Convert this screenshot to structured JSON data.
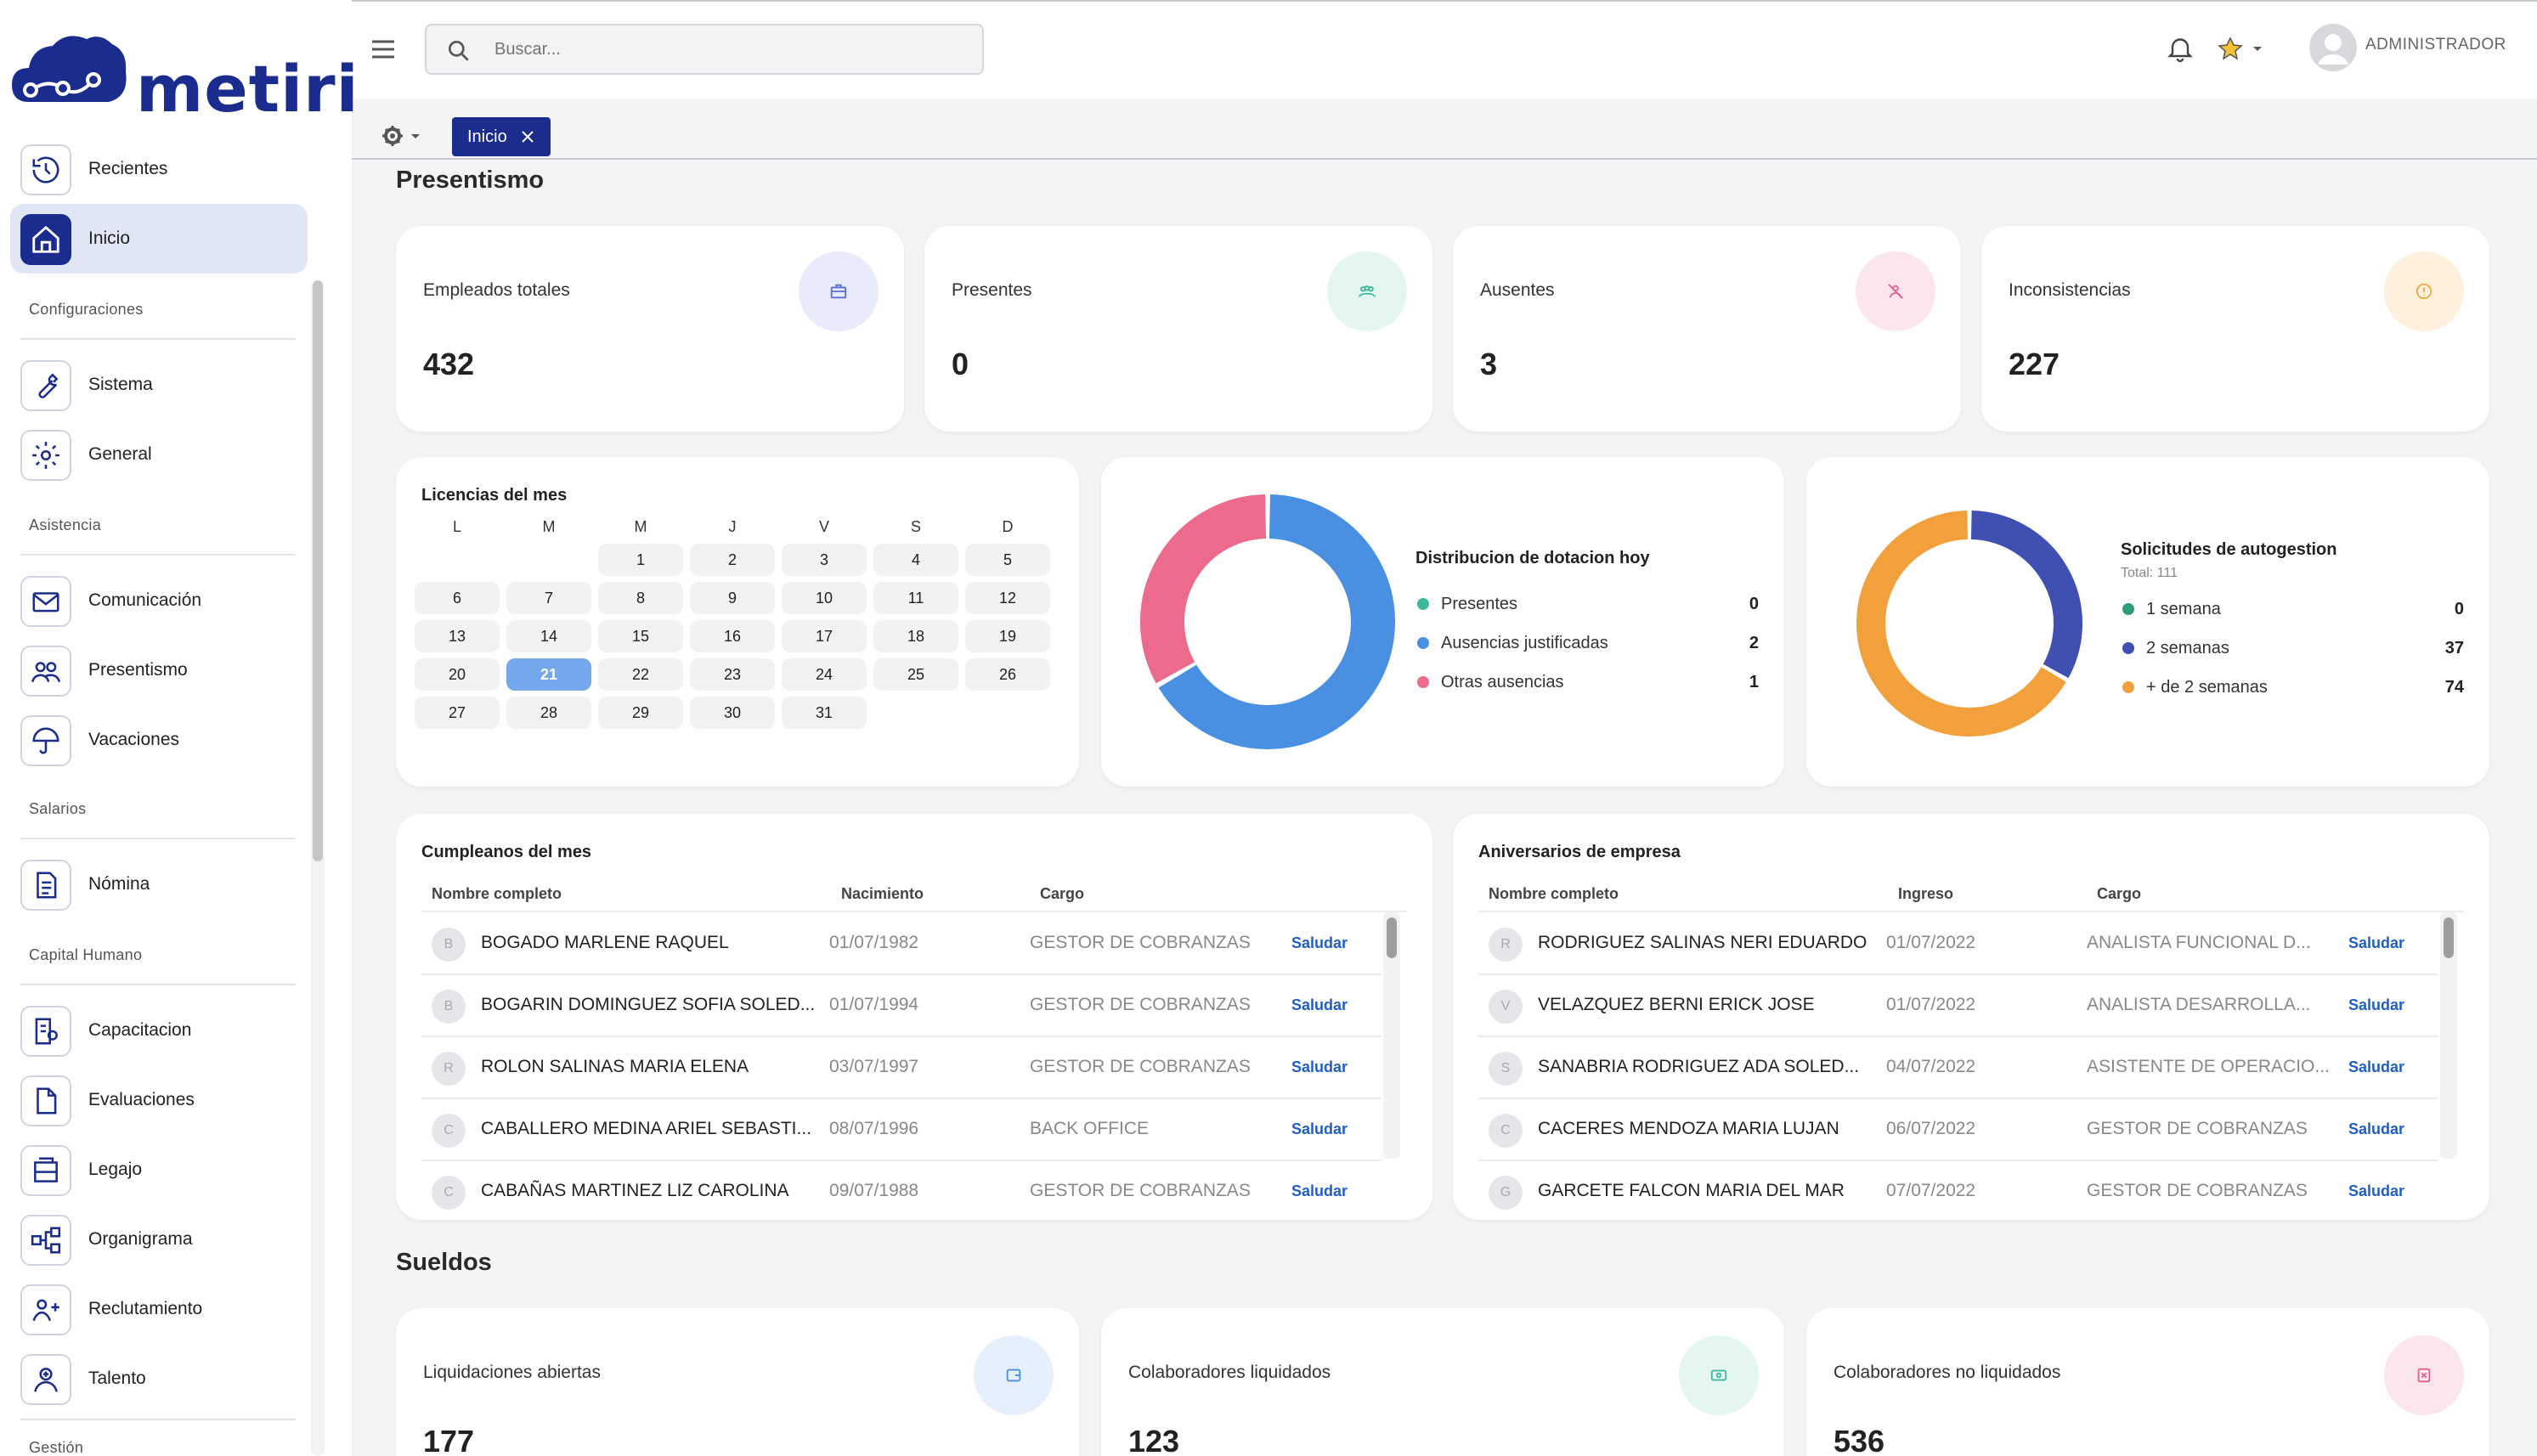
{
  "brand": {
    "name": "metiri"
  },
  "search": {
    "placeholder": "Buscar..."
  },
  "user": {
    "name": "ADMINISTRADOR"
  },
  "tabs": [
    {
      "label": "Inicio"
    }
  ],
  "sidebar": {
    "items": [
      {
        "label": "Recientes",
        "icon": "history-icon"
      },
      {
        "label": "Inicio",
        "icon": "home-icon",
        "active": true
      },
      {
        "label": "Sistema",
        "icon": "wrench-icon"
      },
      {
        "label": "General",
        "icon": "gear-icon"
      },
      {
        "label": "Comunicación",
        "icon": "mail-icon"
      },
      {
        "label": "Presentismo",
        "icon": "people-icon"
      },
      {
        "label": "Vacaciones",
        "icon": "umbrella-icon"
      },
      {
        "label": "Nómina",
        "icon": "document-icon"
      },
      {
        "label": "Capacitacion",
        "icon": "training-icon"
      },
      {
        "label": "Evaluaciones",
        "icon": "file-icon"
      },
      {
        "label": "Legajo",
        "icon": "folder-icon"
      },
      {
        "label": "Organigrama",
        "icon": "org-chart-icon"
      },
      {
        "label": "Reclutamiento",
        "icon": "recruit-icon"
      },
      {
        "label": "Talento",
        "icon": "talent-icon"
      }
    ],
    "sections": [
      "Configuraciones",
      "Asistencia",
      "Salarios",
      "Capital Humano",
      "Gestión"
    ]
  },
  "presentismo": {
    "title": "Presentismo",
    "stats": [
      {
        "label": "Empleados totales",
        "value": "432",
        "color": "#5a6fd6"
      },
      {
        "label": "Presentes",
        "value": "0",
        "color": "#3cb89a"
      },
      {
        "label": "Ausentes",
        "value": "3",
        "color": "#e0608a"
      },
      {
        "label": "Inconsistencias",
        "value": "227",
        "color": "#f0a840"
      }
    ]
  },
  "calendar": {
    "title": "Licencias del mes",
    "weekdays": [
      "L",
      "M",
      "M",
      "J",
      "V",
      "S",
      "D"
    ],
    "days": [
      "1",
      "2",
      "3",
      "4",
      "5",
      "6",
      "7",
      "8",
      "9",
      "10",
      "11",
      "12",
      "13",
      "14",
      "15",
      "16",
      "17",
      "18",
      "19",
      "20",
      "21",
      "22",
      "23",
      "24",
      "25",
      "26",
      "27",
      "28",
      "29",
      "30",
      "31"
    ],
    "today": "21"
  },
  "dotacion": {
    "title": "Distribucion de dotacion hoy",
    "legend": [
      {
        "label": "Presentes",
        "value": "0",
        "color": "#3cb89a"
      },
      {
        "label": "Ausencias justificadas",
        "value": "2",
        "color": "#4a90e2"
      },
      {
        "label": "Otras ausencias",
        "value": "1",
        "color": "#ec6a8c"
      }
    ]
  },
  "autogestion": {
    "title": "Solicitudes de autogestion",
    "subtitle": "Total: 111",
    "legend": [
      {
        "label": "1 semana",
        "value": "0",
        "color": "#2e9c7c"
      },
      {
        "label": "2 semanas",
        "value": "37",
        "color": "#3f4fb2"
      },
      {
        "label": "+ de 2 semanas",
        "value": "74",
        "color": "#f2a03c"
      }
    ]
  },
  "cumpleanos": {
    "title": "Cumpleanos del mes",
    "headers": [
      "Nombre completo",
      "Nacimiento",
      "Cargo"
    ],
    "action": "Saludar",
    "rows": [
      {
        "initial": "B",
        "name": "BOGADO MARLENE RAQUEL",
        "date": "01/07/1982",
        "role": "GESTOR DE COBRANZAS"
      },
      {
        "initial": "B",
        "name": "BOGARIN DOMINGUEZ SOFIA SOLED...",
        "date": "01/07/1994",
        "role": "GESTOR DE COBRANZAS"
      },
      {
        "initial": "R",
        "name": "ROLON SALINAS MARIA ELENA",
        "date": "03/07/1997",
        "role": "GESTOR DE COBRANZAS"
      },
      {
        "initial": "C",
        "name": "CABALLERO MEDINA ARIEL SEBASTI...",
        "date": "08/07/1996",
        "role": "BACK OFFICE"
      },
      {
        "initial": "C",
        "name": "CABAÑAS MARTINEZ LIZ CAROLINA",
        "date": "09/07/1988",
        "role": "GESTOR DE COBRANZAS"
      }
    ]
  },
  "aniversarios": {
    "title": "Aniversarios de empresa",
    "headers": [
      "Nombre completo",
      "Ingreso",
      "Cargo"
    ],
    "action": "Saludar",
    "rows": [
      {
        "initial": "R",
        "name": "RODRIGUEZ SALINAS NERI EDUARDO",
        "date": "01/07/2022",
        "role": "ANALISTA FUNCIONAL D..."
      },
      {
        "initial": "V",
        "name": "VELAZQUEZ BERNI ERICK JOSE",
        "date": "01/07/2022",
        "role": "ANALISTA DESARROLLA..."
      },
      {
        "initial": "S",
        "name": "SANABRIA RODRIGUEZ ADA SOLED...",
        "date": "04/07/2022",
        "role": "ASISTENTE DE OPERACIO..."
      },
      {
        "initial": "C",
        "name": "CACERES MENDOZA MARIA LUJAN",
        "date": "06/07/2022",
        "role": "GESTOR DE COBRANZAS"
      },
      {
        "initial": "G",
        "name": "GARCETE FALCON MARIA DEL MAR",
        "date": "07/07/2022",
        "role": "GESTOR DE COBRANZAS"
      }
    ]
  },
  "sueldos": {
    "title": "Sueldos",
    "stats": [
      {
        "label": "Liquidaciones abiertas",
        "value": "177",
        "color": "#4a90e2"
      },
      {
        "label": "Colaboradores liquidados",
        "value": "123",
        "color": "#3cb89a"
      },
      {
        "label": "Colaboradores no liquidados",
        "value": "536",
        "color": "#e0608a"
      }
    ]
  }
}
